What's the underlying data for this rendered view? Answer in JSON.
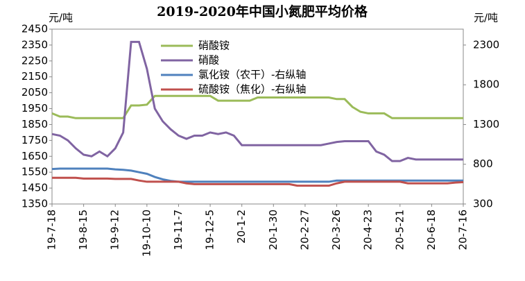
{
  "chart_data": {
    "type": "line",
    "title": "2019-2020年中国小氮肥平均价格",
    "y_label": "元/吨",
    "y2_label": "元/吨",
    "categories": [
      "19-7-18",
      null,
      null,
      null,
      "19-8-15",
      null,
      null,
      null,
      "19-9-12",
      null,
      null,
      null,
      "19-10-10",
      null,
      null,
      null,
      "19-11-7",
      null,
      null,
      null,
      "19-12-5",
      null,
      null,
      null,
      "20-1-2",
      null,
      null,
      null,
      "20-1-30",
      null,
      null,
      null,
      "20-2-27",
      null,
      null,
      null,
      "20-3-26",
      null,
      null,
      null,
      "20-4-23",
      null,
      null,
      null,
      "20-5-21",
      null,
      null,
      null,
      "20-6-18",
      null,
      null,
      null,
      "20-7-16"
    ],
    "ylim": [
      1350,
      2450
    ],
    "yticks": [
      1350,
      1450,
      1550,
      1650,
      1750,
      1850,
      1950,
      2050,
      2150,
      2250,
      2350,
      2450
    ],
    "y2lim": [
      300,
      2500
    ],
    "y2ticks": [
      300,
      800,
      1300,
      1800,
      2300
    ],
    "series": [
      {
        "name": "硝酸铵",
        "color": "#9bbb59",
        "values": [
          1920,
          1900,
          1900,
          1890,
          1890,
          1890,
          1890,
          1890,
          1890,
          1890,
          1970,
          1970,
          1975,
          2030,
          2030,
          2030,
          2030,
          2030,
          2030,
          2030,
          2030,
          2000,
          2000,
          2000,
          2000,
          2000,
          2020,
          2020,
          2020,
          2020,
          2020,
          2020,
          2020,
          2020,
          2020,
          2020,
          2010,
          2010,
          1960,
          1930,
          1920,
          1920,
          1920,
          1890,
          1890,
          1890,
          1890,
          1890,
          1890,
          1890,
          1890,
          1890,
          1890
        ]
      },
      {
        "name": "硝酸",
        "color": "#8064a2",
        "values": [
          1790,
          1780,
          1750,
          1700,
          1660,
          1650,
          1680,
          1650,
          1700,
          1800,
          2370,
          2370,
          2200,
          1950,
          1870,
          1820,
          1780,
          1760,
          1780,
          1780,
          1800,
          1790,
          1800,
          1780,
          1720,
          1720,
          1720,
          1720,
          1720,
          1720,
          1720,
          1720,
          1720,
          1720,
          1720,
          1730,
          1740,
          1745,
          1745,
          1745,
          1745,
          1680,
          1660,
          1620,
          1620,
          1640,
          1630,
          1630,
          1630,
          1630,
          1630,
          1630,
          1630
        ]
      },
      {
        "name": "氯化铵（农干）-右纵轴",
        "color": "#4f81bd",
        "axis": "y2",
        "values": [
          740,
          745,
          745,
          745,
          745,
          745,
          745,
          745,
          735,
          730,
          720,
          700,
          680,
          640,
          610,
          590,
          580,
          580,
          580,
          580,
          580,
          580,
          580,
          580,
          580,
          580,
          580,
          580,
          580,
          580,
          580,
          580,
          580,
          580,
          580,
          580,
          595,
          595,
          595,
          595,
          595,
          595,
          595,
          595,
          595,
          595,
          595,
          595,
          595,
          595,
          595,
          595,
          595
        ]
      },
      {
        "name": "硫酸铵（焦化）-右纵轴",
        "color": "#c0504d",
        "axis": "y2",
        "values": [
          630,
          630,
          630,
          630,
          620,
          620,
          620,
          620,
          615,
          615,
          615,
          595,
          580,
          580,
          580,
          580,
          580,
          560,
          550,
          550,
          550,
          550,
          550,
          550,
          550,
          550,
          550,
          550,
          550,
          550,
          550,
          530,
          530,
          530,
          530,
          530,
          560,
          580,
          580,
          580,
          580,
          580,
          580,
          580,
          580,
          560,
          560,
          560,
          560,
          560,
          560,
          570,
          575
        ]
      }
    ]
  }
}
